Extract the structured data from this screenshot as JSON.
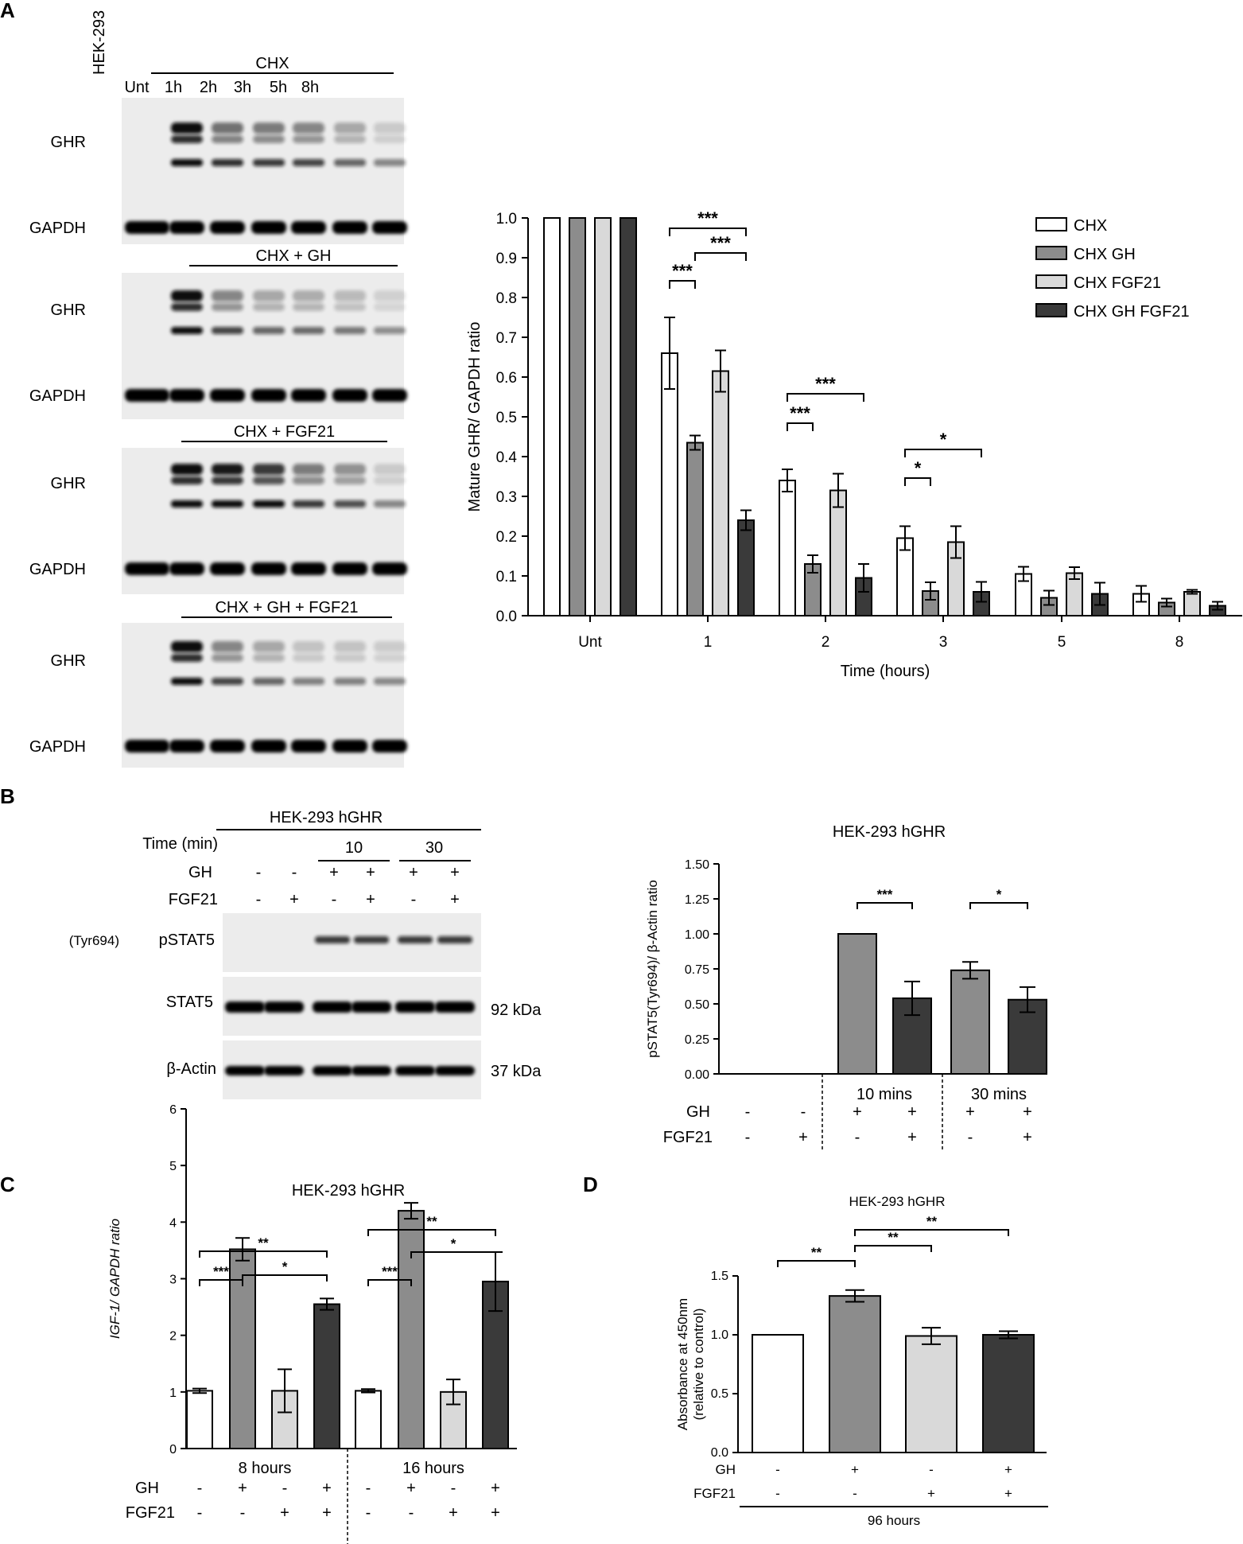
{
  "panels": {
    "A": "A",
    "B": "B",
    "C": "C",
    "D": "D"
  },
  "blotA": {
    "lanes": [
      "HEK-293",
      "Unt",
      "1h",
      "2h",
      "3h",
      "5h",
      "8h"
    ],
    "treatments": [
      "CHX",
      "CHX + GH",
      "CHX + FGF21",
      "CHX + GH + FGF21"
    ],
    "rows": [
      "GHR",
      "GAPDH"
    ]
  },
  "blotB": {
    "cell_line": "HEK-293 hGHR",
    "time_label": "Time (min)",
    "times": [
      "10",
      "30"
    ],
    "gh_label": "GH",
    "fgf_label": "FGF21",
    "gh": [
      "-",
      "-",
      "+",
      "+",
      "+",
      "+"
    ],
    "fgf": [
      "-",
      "+",
      "-",
      "+",
      "-",
      "+"
    ],
    "row_pstat_prefix": "(Tyr694)",
    "row_pstat": "pSTAT5",
    "row_stat": "STAT5",
    "row_actin": "β-Actin",
    "kda_stat": "92 kDa",
    "kda_actin": "37 kDa"
  },
  "chart_data": [
    {
      "type": "bar",
      "xlabel": "Time (hours)",
      "ylabel": "Mature GHR/ GAPDH ratio",
      "ylim": [
        0,
        1.0
      ],
      "yticks": [
        "0.0",
        "0.1",
        "0.2",
        "0.3",
        "0.4",
        "0.5",
        "0.6",
        "0.7",
        "0.8",
        "0.9",
        "1.0"
      ],
      "categories": [
        "Unt",
        "1",
        "2",
        "3",
        "5",
        "8"
      ],
      "legend_position": "top-right",
      "series": [
        {
          "name": "CHX",
          "color": "#ffffff",
          "values": [
            1.0,
            0.66,
            0.34,
            0.195,
            0.105,
            0.055
          ],
          "errors": [
            0,
            0.09,
            0.028,
            0.03,
            0.018,
            0.02
          ]
        },
        {
          "name": "CHX GH",
          "color": "#8c8c8c",
          "values": [
            1.0,
            0.435,
            0.13,
            0.062,
            0.045,
            0.033
          ],
          "errors": [
            0,
            0.018,
            0.022,
            0.022,
            0.018,
            0.01
          ]
        },
        {
          "name": "CHX FGF21",
          "color": "#d9d9d9",
          "values": [
            1.0,
            0.615,
            0.315,
            0.185,
            0.107,
            0.06
          ],
          "errors": [
            0,
            0.052,
            0.042,
            0.04,
            0.015,
            0.005
          ]
        },
        {
          "name": "CHX GH FGF21",
          "color": "#3a3a3a",
          "values": [
            1.0,
            0.24,
            0.095,
            0.06,
            0.055,
            0.025
          ],
          "errors": [
            0,
            0.025,
            0.035,
            0.025,
            0.028,
            0.01
          ]
        }
      ],
      "significance": [
        {
          "group": "1",
          "from": 0,
          "to": 1,
          "label": "***"
        },
        {
          "group": "1",
          "from": 0,
          "to": 3,
          "label": "***"
        },
        {
          "group": "1",
          "from": 1,
          "to": 3,
          "label": "***"
        },
        {
          "group": "2",
          "from": 0,
          "to": 1,
          "label": "***"
        },
        {
          "group": "2",
          "from": 0,
          "to": 3,
          "label": "***"
        },
        {
          "group": "3",
          "from": 0,
          "to": 1,
          "label": "*"
        },
        {
          "group": "3",
          "from": 0,
          "to": 3,
          "label": "*"
        }
      ]
    },
    {
      "type": "bar",
      "title": "HEK-293 hGHR",
      "ylabel": "pSTAT5(Tyr694)/ β-Actin ratio",
      "ylim": [
        0,
        1.5
      ],
      "yticks": [
        "0.00",
        "0.25",
        "0.50",
        "0.75",
        "1.00",
        "1.25",
        "1.50"
      ],
      "group_labels": [
        "10 mins",
        "30 mins"
      ],
      "gh_label": "GH",
      "fgf_label": "FGF21",
      "gh": [
        "-",
        "-",
        "+",
        "+",
        "+",
        "+"
      ],
      "fgf": [
        "-",
        "+",
        "-",
        "+",
        "-",
        "+"
      ],
      "values": [
        0,
        0,
        1.0,
        0.54,
        0.74,
        0.53
      ],
      "errors": [
        0,
        0,
        0,
        0.12,
        0.06,
        0.09
      ],
      "colors": [
        "#ffffff",
        "#ffffff",
        "#8c8c8c",
        "#3a3a3a",
        "#8c8c8c",
        "#3a3a3a"
      ],
      "significance": [
        {
          "from": 2,
          "to": 3,
          "label": "***"
        },
        {
          "from": 4,
          "to": 5,
          "label": "*"
        }
      ]
    },
    {
      "type": "bar",
      "title": "HEK-293 hGHR",
      "ylabel": "IGF-1/ GAPDH ratio",
      "ylim": [
        0,
        6
      ],
      "yticks": [
        "0",
        "1",
        "2",
        "3",
        "4",
        "5",
        "6"
      ],
      "group_labels": [
        "8 hours",
        "16 hours"
      ],
      "gh_label": "GH",
      "fgf_label": "FGF21",
      "gh": [
        "-",
        "+",
        "-",
        "+",
        "-",
        "+",
        "-",
        "+"
      ],
      "fgf": [
        "-",
        "-",
        "+",
        "+",
        "-",
        "-",
        "+",
        "+"
      ],
      "values": [
        1.02,
        3.52,
        1.02,
        2.55,
        1.02,
        4.2,
        1.0,
        2.95
      ],
      "errors": [
        0.04,
        0.2,
        0.38,
        0.1,
        0.03,
        0.14,
        0.22,
        0.52
      ],
      "colors": [
        "#ffffff",
        "#8c8c8c",
        "#d9d9d9",
        "#3a3a3a",
        "#ffffff",
        "#8c8c8c",
        "#d9d9d9",
        "#3a3a3a"
      ],
      "significance": [
        {
          "from": 0,
          "to": 1,
          "label": "***"
        },
        {
          "from": 1,
          "to": 3,
          "label": "*"
        },
        {
          "from": 0,
          "to": 3,
          "label": "**"
        },
        {
          "from": 4,
          "to": 5,
          "label": "***"
        },
        {
          "from": 5,
          "to": 7,
          "label": "*"
        },
        {
          "from": 4,
          "to": 7,
          "label": "**"
        }
      ]
    },
    {
      "type": "bar",
      "title": "HEK-293 hGHR",
      "ylabel_line1": "Absorbance at 450nm",
      "ylabel_line2": "(relative to control)",
      "ylim": [
        0,
        1.5
      ],
      "yticks": [
        "0.0",
        "0.5",
        "1.0",
        "1.5"
      ],
      "gh_label": "GH",
      "fgf_label": "FGF21",
      "gh": [
        "-",
        "+",
        "-",
        "+"
      ],
      "fgf": [
        "-",
        "-",
        "+",
        "+"
      ],
      "footer": "96 hours",
      "values": [
        1.0,
        1.33,
        0.99,
        1.0
      ],
      "errors": [
        0,
        0.05,
        0.07,
        0.03
      ],
      "colors": [
        "#ffffff",
        "#8c8c8c",
        "#d9d9d9",
        "#3a3a3a"
      ],
      "significance": [
        {
          "from": 0,
          "to": 1,
          "label": "**"
        },
        {
          "from": 1,
          "to": 2,
          "label": "**"
        },
        {
          "from": 1,
          "to": 3,
          "label": "**"
        }
      ]
    }
  ]
}
